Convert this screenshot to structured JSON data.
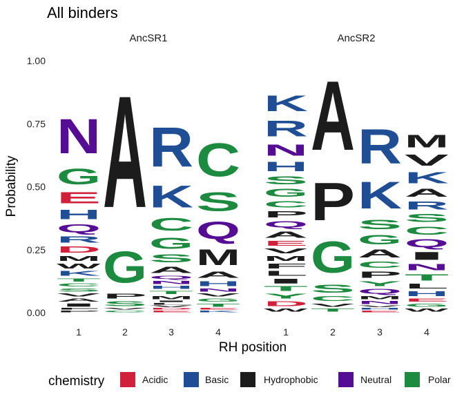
{
  "chart_data": {
    "type": "sequence-logo",
    "title": "All binders",
    "xlabel": "RH position",
    "ylabel": "Probability",
    "ylim": [
      0,
      1
    ],
    "y_ticks": [
      "0.00",
      "0.25",
      "0.50",
      "0.75",
      "1.00"
    ],
    "x_ticks": [
      "1",
      "2",
      "3",
      "4"
    ],
    "grid": false,
    "legend_placement": "bottom",
    "legend": {
      "title": "chemistry",
      "entries": [
        {
          "name": "Acidic",
          "color": "#d1203a"
        },
        {
          "name": "Basic",
          "color": "#1f4e94"
        },
        {
          "name": "Hydrophobic",
          "color": "#1c1c1c"
        },
        {
          "name": "Neutral",
          "color": "#540d93"
        },
        {
          "name": "Polar",
          "color": "#1c8a3f"
        }
      ]
    },
    "panels": [
      {
        "name": "AncSR1",
        "positions": [
          {
            "x": "1",
            "letters": [
              {
                "aa": "N",
                "p": 0.22,
                "class": "Neutral"
              },
              {
                "aa": "G",
                "p": 0.1,
                "class": "Polar"
              },
              {
                "aa": "E",
                "p": 0.07,
                "class": "Acidic"
              },
              {
                "aa": "H",
                "p": 0.06,
                "class": "Basic"
              },
              {
                "aa": "Q",
                "p": 0.05,
                "class": "Neutral"
              },
              {
                "aa": "D",
                "p": 0.04,
                "class": "Acidic"
              },
              {
                "aa": "R",
                "p": 0.04,
                "class": "Basic"
              },
              {
                "aa": "K",
                "p": 0.03,
                "class": "Basic"
              },
              {
                "aa": "W",
                "p": 0.03,
                "class": "Hydrophobic"
              },
              {
                "aa": "M",
                "p": 0.03,
                "class": "Hydrophobic"
              },
              {
                "aa": "I",
                "p": 0.02,
                "class": "Hydrophobic"
              },
              {
                "aa": "A",
                "p": 0.02,
                "class": "Hydrophobic"
              },
              {
                "aa": "V",
                "p": 0.02,
                "class": "Hydrophobic"
              },
              {
                "aa": "S",
                "p": 0.02,
                "class": "Polar"
              },
              {
                "aa": "C",
                "p": 0.02,
                "class": "Polar"
              },
              {
                "aa": "T",
                "p": 0.02,
                "class": "Polar"
              },
              {
                "aa": "P",
                "p": 0.01,
                "class": "Hydrophobic"
              },
              {
                "aa": "F",
                "p": 0.01,
                "class": "Hydrophobic"
              }
            ]
          },
          {
            "x": "2",
            "letters": [
              {
                "aa": "A",
                "p": 0.71,
                "class": "Hydrophobic"
              },
              {
                "aa": "G",
                "p": 0.2,
                "class": "Polar"
              },
              {
                "aa": "S",
                "p": 0.03,
                "class": "Polar"
              },
              {
                "aa": "P",
                "p": 0.03,
                "class": "Hydrophobic"
              },
              {
                "aa": "C",
                "p": 0.01,
                "class": "Polar"
              },
              {
                "aa": "V",
                "p": 0.01,
                "class": "Hydrophobic"
              }
            ]
          },
          {
            "x": "3",
            "letters": [
              {
                "aa": "R",
                "p": 0.25,
                "class": "Basic"
              },
              {
                "aa": "K",
                "p": 0.14,
                "class": "Basic"
              },
              {
                "aa": "C",
                "p": 0.08,
                "class": "Polar"
              },
              {
                "aa": "G",
                "p": 0.07,
                "class": "Polar"
              },
              {
                "aa": "S",
                "p": 0.05,
                "class": "Polar"
              },
              {
                "aa": "A",
                "p": 0.04,
                "class": "Hydrophobic"
              },
              {
                "aa": "M",
                "p": 0.02,
                "class": "Hydrophobic"
              },
              {
                "aa": "T",
                "p": 0.02,
                "class": "Polar"
              },
              {
                "aa": "H",
                "p": 0.02,
                "class": "Basic"
              },
              {
                "aa": "N",
                "p": 0.02,
                "class": "Neutral"
              },
              {
                "aa": "Q",
                "p": 0.02,
                "class": "Neutral"
              },
              {
                "aa": "E",
                "p": 0.01,
                "class": "Acidic"
              },
              {
                "aa": "D",
                "p": 0.01,
                "class": "Acidic"
              },
              {
                "aa": "V",
                "p": 0.01,
                "class": "Hydrophobic"
              },
              {
                "aa": "L",
                "p": 0.01,
                "class": "Hydrophobic"
              },
              {
                "aa": "I",
                "p": 0.01,
                "class": "Hydrophobic"
              }
            ]
          },
          {
            "x": "4",
            "letters": [
              {
                "aa": "C",
                "p": 0.21,
                "class": "Polar"
              },
              {
                "aa": "S",
                "p": 0.12,
                "class": "Polar"
              },
              {
                "aa": "Q",
                "p": 0.11,
                "class": "Neutral"
              },
              {
                "aa": "M",
                "p": 0.1,
                "class": "Hydrophobic"
              },
              {
                "aa": "A",
                "p": 0.04,
                "class": "Hydrophobic"
              },
              {
                "aa": "H",
                "p": 0.03,
                "class": "Basic"
              },
              {
                "aa": "T",
                "p": 0.02,
                "class": "Polar"
              },
              {
                "aa": "G",
                "p": 0.02,
                "class": "Polar"
              },
              {
                "aa": "V",
                "p": 0.02,
                "class": "Hydrophobic"
              },
              {
                "aa": "N",
                "p": 0.02,
                "class": "Neutral"
              },
              {
                "aa": "K",
                "p": 0.01,
                "class": "Basic"
              },
              {
                "aa": "E",
                "p": 0.01,
                "class": "Acidic"
              }
            ]
          }
        ]
      },
      {
        "name": "AncSR2",
        "positions": [
          {
            "x": "1",
            "letters": [
              {
                "aa": "R",
                "p": 0.1,
                "class": "Basic"
              },
              {
                "aa": "K",
                "p": 0.1,
                "class": "Basic"
              },
              {
                "aa": "N",
                "p": 0.07,
                "class": "Neutral"
              },
              {
                "aa": "H",
                "p": 0.06,
                "class": "Basic"
              },
              {
                "aa": "G",
                "p": 0.05,
                "class": "Polar"
              },
              {
                "aa": "S",
                "p": 0.05,
                "class": "Polar"
              },
              {
                "aa": "A",
                "p": 0.04,
                "class": "Hydrophobic"
              },
              {
                "aa": "Q",
                "p": 0.04,
                "class": "Neutral"
              },
              {
                "aa": "P",
                "p": 0.04,
                "class": "Hydrophobic"
              },
              {
                "aa": "C",
                "p": 0.04,
                "class": "Polar"
              },
              {
                "aa": "D",
                "p": 0.03,
                "class": "Acidic"
              },
              {
                "aa": "Y",
                "p": 0.03,
                "class": "Polar"
              },
              {
                "aa": "T",
                "p": 0.03,
                "class": "Polar"
              },
              {
                "aa": "I",
                "p": 0.03,
                "class": "Hydrophobic"
              },
              {
                "aa": "L",
                "p": 0.03,
                "class": "Hydrophobic"
              },
              {
                "aa": "F",
                "p": 0.03,
                "class": "Hydrophobic"
              },
              {
                "aa": "M",
                "p": 0.03,
                "class": "Hydrophobic"
              },
              {
                "aa": "V",
                "p": 0.03,
                "class": "Hydrophobic"
              },
              {
                "aa": "E",
                "p": 0.03,
                "class": "Acidic"
              },
              {
                "aa": "W",
                "p": 0.02,
                "class": "Hydrophobic"
              }
            ]
          },
          {
            "x": "2",
            "letters": [
              {
                "aa": "A",
                "p": 0.44,
                "class": "Hydrophobic"
              },
              {
                "aa": "P",
                "p": 0.24,
                "class": "Hydrophobic"
              },
              {
                "aa": "G",
                "p": 0.2,
                "class": "Polar"
              },
              {
                "aa": "S",
                "p": 0.05,
                "class": "Polar"
              },
              {
                "aa": "C",
                "p": 0.03,
                "class": "Polar"
              },
              {
                "aa": "T",
                "p": 0.02,
                "class": "Polar"
              },
              {
                "aa": "V",
                "p": 0.02,
                "class": "Hydrophobic"
              }
            ]
          },
          {
            "x": "3",
            "letters": [
              {
                "aa": "R",
                "p": 0.22,
                "class": "Basic"
              },
              {
                "aa": "K",
                "p": 0.17,
                "class": "Basic"
              },
              {
                "aa": "G",
                "p": 0.06,
                "class": "Polar"
              },
              {
                "aa": "S",
                "p": 0.06,
                "class": "Polar"
              },
              {
                "aa": "A",
                "p": 0.05,
                "class": "Hydrophobic"
              },
              {
                "aa": "P",
                "p": 0.04,
                "class": "Hydrophobic"
              },
              {
                "aa": "C",
                "p": 0.04,
                "class": "Polar"
              },
              {
                "aa": "Q",
                "p": 0.03,
                "class": "Neutral"
              },
              {
                "aa": "Y",
                "p": 0.03,
                "class": "Polar"
              },
              {
                "aa": "N",
                "p": 0.02,
                "class": "Neutral"
              },
              {
                "aa": "M",
                "p": 0.02,
                "class": "Hydrophobic"
              },
              {
                "aa": "E",
                "p": 0.01,
                "class": "Acidic"
              },
              {
                "aa": "H",
                "p": 0.01,
                "class": "Basic"
              },
              {
                "aa": "V",
                "p": 0.01,
                "class": "Hydrophobic"
              }
            ]
          },
          {
            "x": "4",
            "letters": [
              {
                "aa": "M",
                "p": 0.08,
                "class": "Hydrophobic"
              },
              {
                "aa": "K",
                "p": 0.07,
                "class": "Basic"
              },
              {
                "aa": "V",
                "p": 0.07,
                "class": "Hydrophobic"
              },
              {
                "aa": "I",
                "p": 0.05,
                "class": "Hydrophobic"
              },
              {
                "aa": "Q",
                "p": 0.05,
                "class": "Neutral"
              },
              {
                "aa": "C",
                "p": 0.05,
                "class": "Polar"
              },
              {
                "aa": "S",
                "p": 0.05,
                "class": "Polar"
              },
              {
                "aa": "R",
                "p": 0.05,
                "class": "Basic"
              },
              {
                "aa": "A",
                "p": 0.05,
                "class": "Hydrophobic"
              },
              {
                "aa": "T",
                "p": 0.04,
                "class": "Polar"
              },
              {
                "aa": "N",
                "p": 0.04,
                "class": "Neutral"
              },
              {
                "aa": "H",
                "p": 0.03,
                "class": "Basic"
              },
              {
                "aa": "L",
                "p": 0.03,
                "class": "Hydrophobic"
              },
              {
                "aa": "W",
                "p": 0.02,
                "class": "Hydrophobic"
              },
              {
                "aa": "G",
                "p": 0.02,
                "class": "Polar"
              },
              {
                "aa": "E",
                "p": 0.02,
                "class": "Acidic"
              }
            ]
          }
        ]
      }
    ]
  }
}
